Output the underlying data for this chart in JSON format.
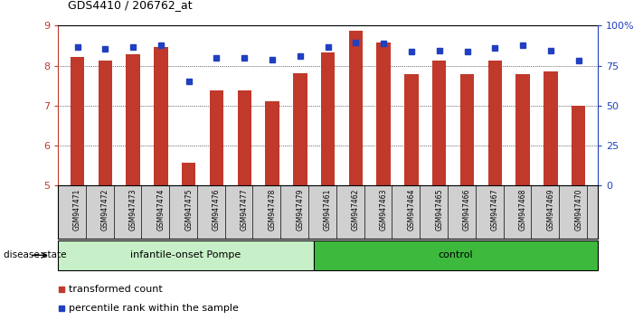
{
  "title": "GDS4410 / 206762_at",
  "samples": [
    "GSM947471",
    "GSM947472",
    "GSM947473",
    "GSM947474",
    "GSM947475",
    "GSM947476",
    "GSM947477",
    "GSM947478",
    "GSM947479",
    "GSM947461",
    "GSM947462",
    "GSM947463",
    "GSM947464",
    "GSM947465",
    "GSM947466",
    "GSM947467",
    "GSM947468",
    "GSM947469",
    "GSM947470"
  ],
  "bar_values": [
    8.22,
    8.12,
    8.28,
    8.47,
    5.57,
    7.38,
    7.38,
    7.12,
    7.8,
    8.32,
    8.88,
    8.58,
    7.78,
    8.12,
    7.78,
    8.12,
    7.78,
    7.85,
    7.0
  ],
  "percentile_values": [
    8.47,
    8.42,
    8.47,
    8.5,
    7.6,
    8.2,
    8.2,
    8.15,
    8.25,
    8.47,
    8.57,
    8.55,
    8.35,
    8.38,
    8.35,
    8.45,
    8.5,
    8.37,
    8.12
  ],
  "bar_color": "#c0392b",
  "dot_color": "#2040c0",
  "ymin": 5,
  "ymax": 9,
  "yticks": [
    5,
    6,
    7,
    8,
    9
  ],
  "y2min": 0,
  "y2max": 100,
  "y2ticks": [
    0,
    25,
    50,
    75,
    100
  ],
  "group1_label": "infantile-onset Pompe",
  "group2_label": "control",
  "group1_count": 9,
  "group2_count": 10,
  "disease_state_label": "disease state",
  "legend_bar_label": "transformed count",
  "legend_dot_label": "percentile rank within the sample",
  "bar_width": 0.5,
  "light_green1": "#c8f0c8",
  "light_green2": "#3dba3d",
  "tick_label_color_left": "#c0392b",
  "tick_label_color_right": "#2040c0",
  "sample_bg_color": "#d0d0d0"
}
